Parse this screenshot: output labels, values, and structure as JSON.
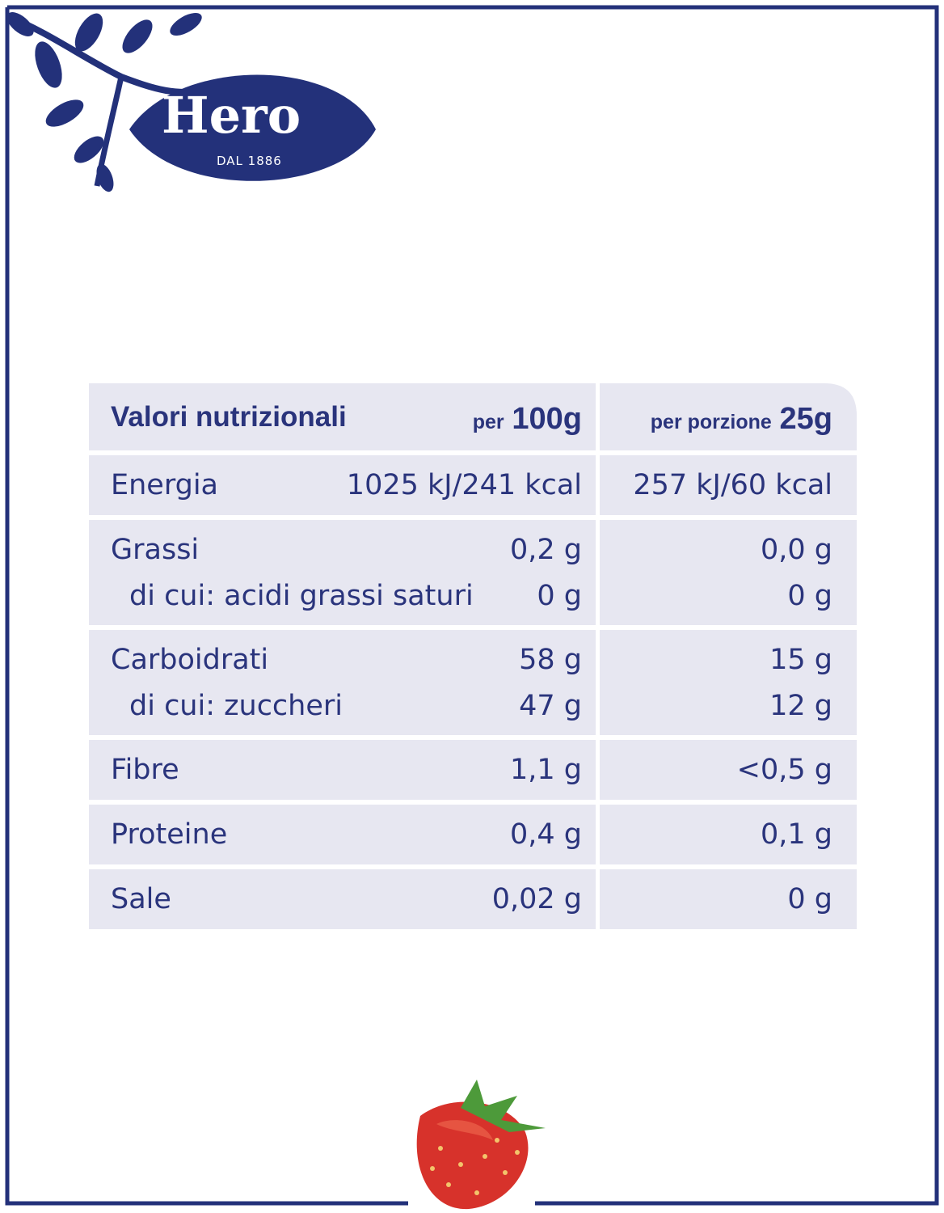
{
  "logo": {
    "brand": "Hero",
    "tagline": "DAL 1886"
  },
  "table": {
    "header": {
      "title": "Valori nutrizionali",
      "per_100g": {
        "prefix": "per",
        "amount": "100g"
      },
      "per_portion": {
        "prefix": "per porzione",
        "amount": "25g"
      }
    },
    "groups": [
      {
        "rows": [
          [
            "Energia",
            "1025 kJ/241 kcal",
            "257 kJ/60 kcal"
          ]
        ]
      },
      {
        "rows": [
          [
            "Grassi",
            "0,2 g",
            "0,0 g"
          ],
          [
            "di cui: acidi grassi saturi",
            "0 g",
            "0 g"
          ]
        ]
      },
      {
        "rows": [
          [
            "Carboidrati",
            "58 g",
            "15 g"
          ],
          [
            "di cui: zuccheri",
            "47 g",
            "12 g"
          ]
        ]
      },
      {
        "rows": [
          [
            "Fibre",
            "1,1 g",
            "<0,5 g"
          ]
        ]
      },
      {
        "rows": [
          [
            "Proteine",
            "0,4 g",
            "0,1 g"
          ]
        ]
      },
      {
        "rows": [
          [
            "Sale",
            "0,02 g",
            "0 g"
          ]
        ]
      }
    ]
  }
}
